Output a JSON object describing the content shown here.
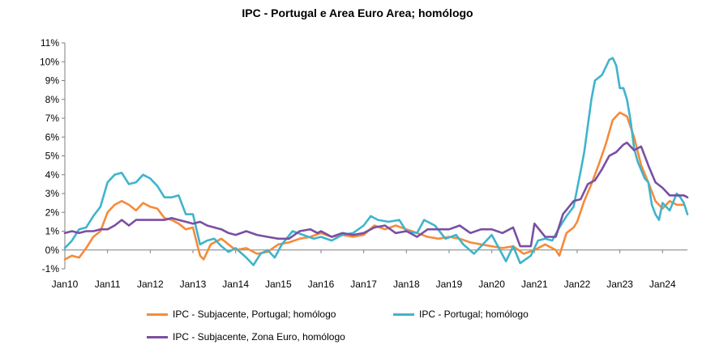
{
  "chart_data": {
    "type": "line",
    "title": "IPC - Portugal e Area Euro Area; homólogo",
    "xlabel": "",
    "ylabel": "",
    "x_ticks": [
      "Jan10",
      "Jan11",
      "Jan12",
      "Jan13",
      "Jan14",
      "Jan15",
      "Jan16",
      "Jan17",
      "Jan18",
      "Jan19",
      "Jan20",
      "Jan21",
      "Jan22",
      "Jan23",
      "Jan24"
    ],
    "y_ticks": [
      "-1%",
      "0%",
      "1%",
      "2%",
      "3%",
      "4%",
      "5%",
      "6%",
      "7%",
      "8%",
      "9%",
      "10%",
      "11%"
    ],
    "ylim": [
      -1,
      11
    ],
    "x_start": "2010-01",
    "x_end": "2024-08",
    "grid": false,
    "legend_position": "bottom",
    "series": [
      {
        "name": "IPC - Subjacente, Portugal; homólogo",
        "color": "#F58B3A",
        "points": [
          [
            "2010-01",
            -0.5
          ],
          [
            "2010-03",
            -0.3
          ],
          [
            "2010-05",
            -0.4
          ],
          [
            "2010-07",
            0.1
          ],
          [
            "2010-09",
            0.7
          ],
          [
            "2010-11",
            1.0
          ],
          [
            "2011-01",
            2.0
          ],
          [
            "2011-03",
            2.4
          ],
          [
            "2011-05",
            2.6
          ],
          [
            "2011-07",
            2.4
          ],
          [
            "2011-09",
            2.1
          ],
          [
            "2011-11",
            2.5
          ],
          [
            "2012-01",
            2.3
          ],
          [
            "2012-03",
            2.2
          ],
          [
            "2012-05",
            1.7
          ],
          [
            "2012-07",
            1.6
          ],
          [
            "2012-09",
            1.4
          ],
          [
            "2012-11",
            1.1
          ],
          [
            "2013-01",
            1.2
          ],
          [
            "2013-03",
            -0.3
          ],
          [
            "2013-04",
            -0.5
          ],
          [
            "2013-06",
            0.3
          ],
          [
            "2013-09",
            0.6
          ],
          [
            "2013-11",
            0.3
          ],
          [
            "2014-01",
            0.0
          ],
          [
            "2014-04",
            0.1
          ],
          [
            "2014-07",
            -0.2
          ],
          [
            "2014-10",
            -0.1
          ],
          [
            "2015-01",
            0.3
          ],
          [
            "2015-04",
            0.4
          ],
          [
            "2015-07",
            0.6
          ],
          [
            "2015-10",
            0.7
          ],
          [
            "2016-01",
            0.9
          ],
          [
            "2016-04",
            0.7
          ],
          [
            "2016-07",
            0.8
          ],
          [
            "2016-10",
            0.7
          ],
          [
            "2017-01",
            0.8
          ],
          [
            "2017-04",
            1.3
          ],
          [
            "2017-07",
            1.1
          ],
          [
            "2017-10",
            1.3
          ],
          [
            "2018-01",
            1.1
          ],
          [
            "2018-04",
            0.9
          ],
          [
            "2018-07",
            0.7
          ],
          [
            "2018-10",
            0.6
          ],
          [
            "2019-01",
            0.7
          ],
          [
            "2019-04",
            0.6
          ],
          [
            "2019-07",
            0.4
          ],
          [
            "2019-10",
            0.3
          ],
          [
            "2020-01",
            0.2
          ],
          [
            "2020-04",
            0.1
          ],
          [
            "2020-07",
            0.2
          ],
          [
            "2020-10",
            -0.2
          ],
          [
            "2021-01",
            0.0
          ],
          [
            "2021-04",
            0.3
          ],
          [
            "2021-07",
            0.0
          ],
          [
            "2021-08",
            -0.3
          ],
          [
            "2021-10",
            0.9
          ],
          [
            "2021-12",
            1.2
          ],
          [
            "2022-01",
            1.5
          ],
          [
            "2022-03",
            2.6
          ],
          [
            "2022-05",
            3.5
          ],
          [
            "2022-07",
            4.5
          ],
          [
            "2022-09",
            5.6
          ],
          [
            "2022-11",
            6.9
          ],
          [
            "2023-01",
            7.3
          ],
          [
            "2023-03",
            7.1
          ],
          [
            "2023-05",
            6.0
          ],
          [
            "2023-07",
            4.5
          ],
          [
            "2023-09",
            3.6
          ],
          [
            "2023-11",
            2.6
          ],
          [
            "2024-01",
            2.2
          ],
          [
            "2024-03",
            2.6
          ],
          [
            "2024-05",
            2.4
          ],
          [
            "2024-07",
            2.4
          ]
        ]
      },
      {
        "name": "IPC - Portugal; homólogo",
        "color": "#3FB4CC",
        "points": [
          [
            "2010-01",
            0.1
          ],
          [
            "2010-03",
            0.5
          ],
          [
            "2010-05",
            1.1
          ],
          [
            "2010-07",
            1.2
          ],
          [
            "2010-09",
            1.8
          ],
          [
            "2010-11",
            2.3
          ],
          [
            "2011-01",
            3.6
          ],
          [
            "2011-03",
            4.0
          ],
          [
            "2011-05",
            4.1
          ],
          [
            "2011-07",
            3.5
          ],
          [
            "2011-09",
            3.6
          ],
          [
            "2011-11",
            4.0
          ],
          [
            "2012-01",
            3.8
          ],
          [
            "2012-03",
            3.4
          ],
          [
            "2012-05",
            2.8
          ],
          [
            "2012-07",
            2.8
          ],
          [
            "2012-09",
            2.9
          ],
          [
            "2012-11",
            1.9
          ],
          [
            "2013-01",
            1.9
          ],
          [
            "2013-03",
            0.3
          ],
          [
            "2013-05",
            0.5
          ],
          [
            "2013-07",
            0.6
          ],
          [
            "2013-09",
            0.2
          ],
          [
            "2013-11",
            -0.1
          ],
          [
            "2014-01",
            0.1
          ],
          [
            "2014-04",
            -0.4
          ],
          [
            "2014-06",
            -0.8
          ],
          [
            "2014-08",
            -0.2
          ],
          [
            "2014-10",
            0.0
          ],
          [
            "2014-12",
            -0.4
          ],
          [
            "2015-02",
            0.3
          ],
          [
            "2015-05",
            1.0
          ],
          [
            "2015-08",
            0.8
          ],
          [
            "2015-11",
            0.6
          ],
          [
            "2016-01",
            0.7
          ],
          [
            "2016-04",
            0.5
          ],
          [
            "2016-07",
            0.8
          ],
          [
            "2016-10",
            0.9
          ],
          [
            "2017-01",
            1.3
          ],
          [
            "2017-03",
            1.8
          ],
          [
            "2017-05",
            1.6
          ],
          [
            "2017-08",
            1.5
          ],
          [
            "2017-11",
            1.6
          ],
          [
            "2018-01",
            1.0
          ],
          [
            "2018-04",
            0.9
          ],
          [
            "2018-06",
            1.6
          ],
          [
            "2018-09",
            1.3
          ],
          [
            "2018-12",
            0.6
          ],
          [
            "2019-03",
            0.8
          ],
          [
            "2019-05",
            0.3
          ],
          [
            "2019-08",
            -0.2
          ],
          [
            "2019-11",
            0.4
          ],
          [
            "2020-01",
            0.8
          ],
          [
            "2020-03",
            0.1
          ],
          [
            "2020-05",
            -0.6
          ],
          [
            "2020-07",
            0.2
          ],
          [
            "2020-09",
            -0.7
          ],
          [
            "2020-12",
            -0.3
          ],
          [
            "2021-02",
            0.5
          ],
          [
            "2021-04",
            0.6
          ],
          [
            "2021-06",
            0.5
          ],
          [
            "2021-08",
            1.2
          ],
          [
            "2021-10",
            1.8
          ],
          [
            "2021-12",
            2.3
          ],
          [
            "2022-02",
            4.2
          ],
          [
            "2022-03",
            5.2
          ],
          [
            "2022-05",
            8.0
          ],
          [
            "2022-06",
            9.0
          ],
          [
            "2022-08",
            9.3
          ],
          [
            "2022-10",
            10.1
          ],
          [
            "2022-11",
            10.2
          ],
          [
            "2022-12",
            9.8
          ],
          [
            "2023-01",
            8.6
          ],
          [
            "2023-02",
            8.6
          ],
          [
            "2023-03",
            8.0
          ],
          [
            "2023-04",
            6.9
          ],
          [
            "2023-05",
            5.4
          ],
          [
            "2023-06",
            4.7
          ],
          [
            "2023-08",
            3.8
          ],
          [
            "2023-09",
            3.6
          ],
          [
            "2023-10",
            2.4
          ],
          [
            "2023-11",
            1.9
          ],
          [
            "2023-12",
            1.6
          ],
          [
            "2024-01",
            2.5
          ],
          [
            "2024-03",
            2.1
          ],
          [
            "2024-05",
            3.0
          ],
          [
            "2024-06",
            2.8
          ],
          [
            "2024-07",
            2.5
          ],
          [
            "2024-08",
            1.9
          ]
        ]
      },
      {
        "name": "IPC - Subjacente, Zona Euro, homólogo",
        "color": "#7A4FA3",
        "points": [
          [
            "2010-01",
            0.9
          ],
          [
            "2010-03",
            1.0
          ],
          [
            "2010-05",
            0.9
          ],
          [
            "2010-07",
            1.0
          ],
          [
            "2010-09",
            1.0
          ],
          [
            "2010-11",
            1.1
          ],
          [
            "2011-01",
            1.1
          ],
          [
            "2011-03",
            1.3
          ],
          [
            "2011-05",
            1.6
          ],
          [
            "2011-07",
            1.3
          ],
          [
            "2011-09",
            1.6
          ],
          [
            "2011-11",
            1.6
          ],
          [
            "2012-01",
            1.6
          ],
          [
            "2012-03",
            1.6
          ],
          [
            "2012-05",
            1.6
          ],
          [
            "2012-07",
            1.7
          ],
          [
            "2012-09",
            1.6
          ],
          [
            "2012-11",
            1.5
          ],
          [
            "2013-01",
            1.4
          ],
          [
            "2013-03",
            1.5
          ],
          [
            "2013-05",
            1.3
          ],
          [
            "2013-07",
            1.2
          ],
          [
            "2013-09",
            1.1
          ],
          [
            "2013-11",
            0.9
          ],
          [
            "2014-01",
            0.8
          ],
          [
            "2014-04",
            1.0
          ],
          [
            "2014-07",
            0.8
          ],
          [
            "2014-10",
            0.7
          ],
          [
            "2015-01",
            0.6
          ],
          [
            "2015-04",
            0.6
          ],
          [
            "2015-07",
            1.0
          ],
          [
            "2015-10",
            1.1
          ],
          [
            "2015-12",
            0.9
          ],
          [
            "2016-01",
            1.0
          ],
          [
            "2016-04",
            0.7
          ],
          [
            "2016-07",
            0.9
          ],
          [
            "2016-10",
            0.8
          ],
          [
            "2017-01",
            0.9
          ],
          [
            "2017-04",
            1.2
          ],
          [
            "2017-07",
            1.3
          ],
          [
            "2017-10",
            0.9
          ],
          [
            "2018-01",
            1.0
          ],
          [
            "2018-04",
            0.7
          ],
          [
            "2018-07",
            1.1
          ],
          [
            "2018-10",
            1.1
          ],
          [
            "2019-01",
            1.1
          ],
          [
            "2019-04",
            1.3
          ],
          [
            "2019-07",
            0.9
          ],
          [
            "2019-10",
            1.1
          ],
          [
            "2020-01",
            1.1
          ],
          [
            "2020-04",
            0.9
          ],
          [
            "2020-07",
            1.2
          ],
          [
            "2020-09",
            0.2
          ],
          [
            "2020-12",
            0.2
          ],
          [
            "2021-01",
            1.4
          ],
          [
            "2021-04",
            0.7
          ],
          [
            "2021-07",
            0.7
          ],
          [
            "2021-09",
            1.9
          ],
          [
            "2021-12",
            2.6
          ],
          [
            "2022-02",
            2.7
          ],
          [
            "2022-04",
            3.5
          ],
          [
            "2022-06",
            3.7
          ],
          [
            "2022-08",
            4.3
          ],
          [
            "2022-10",
            5.0
          ],
          [
            "2022-12",
            5.2
          ],
          [
            "2023-02",
            5.6
          ],
          [
            "2023-03",
            5.7
          ],
          [
            "2023-05",
            5.3
          ],
          [
            "2023-07",
            5.5
          ],
          [
            "2023-09",
            4.5
          ],
          [
            "2023-11",
            3.6
          ],
          [
            "2024-01",
            3.3
          ],
          [
            "2024-03",
            2.9
          ],
          [
            "2024-05",
            2.9
          ],
          [
            "2024-07",
            2.9
          ],
          [
            "2024-08",
            2.8
          ]
        ]
      }
    ]
  }
}
